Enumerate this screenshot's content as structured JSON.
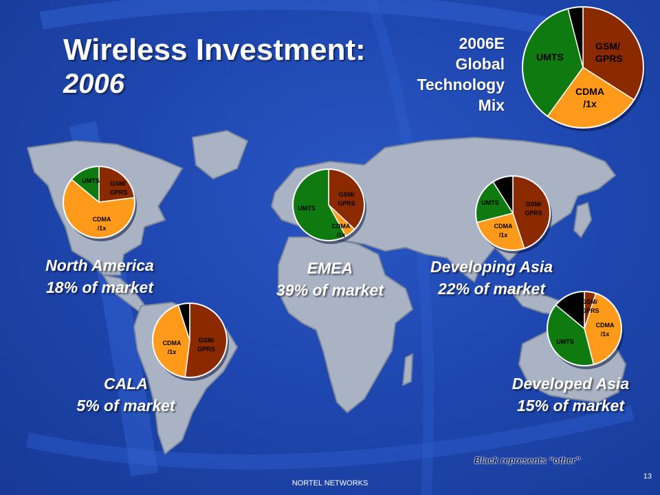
{
  "slide": {
    "title_line1": "Wireless Investment:",
    "title_line2": "2006",
    "global_label": [
      "2006E",
      "Global",
      "Technology",
      "Mix"
    ],
    "footnote": "Black represents “other”",
    "footer": "NORTEL NETWORKS",
    "page_number": "13"
  },
  "colors": {
    "background": "#1f47b0",
    "land": "#a9b3c4",
    "gsm_gprs": "#8b2a00",
    "cdma": "#ff9a1a",
    "umts": "#0e7a10",
    "other": "#000000"
  },
  "regions": {
    "north_america": {
      "name": "North America",
      "share": "18% of market"
    },
    "emea": {
      "name": "EMEA",
      "share": "39% of market"
    },
    "developing_asia": {
      "name": "Developing Asia",
      "share": "22% of market"
    },
    "cala": {
      "name": "CALA",
      "share": "5% of market"
    },
    "developed_asia": {
      "name": "Developed Asia",
      "share": "15% of market"
    }
  },
  "chart_data": [
    {
      "type": "pie",
      "title": "2006E Global Technology Mix",
      "slices": [
        {
          "label": "GSM/ GPRS",
          "value": 34,
          "color": "#8b2a00"
        },
        {
          "label": "CDMA /1x",
          "value": 26,
          "color": "#ff9a1a"
        },
        {
          "label": "UMTS",
          "value": 36,
          "color": "#0e7a10"
        },
        {
          "label": "",
          "value": 4,
          "color": "#000000"
        }
      ]
    },
    {
      "type": "pie",
      "title": "North America",
      "slices": [
        {
          "label": "GSM/ GPRS",
          "value": 23,
          "color": "#8b2a00"
        },
        {
          "label": "CDMA /1x",
          "value": 63,
          "color": "#ff9a1a"
        },
        {
          "label": "UMTS",
          "value": 14,
          "color": "#0e7a10"
        }
      ]
    },
    {
      "type": "pie",
      "title": "EMEA",
      "slices": [
        {
          "label": "GSM/ GPRS",
          "value": 37,
          "color": "#8b2a00"
        },
        {
          "label": "CDMA /1x",
          "value": 5,
          "color": "#ff9a1a"
        },
        {
          "label": "UMTS",
          "value": 58,
          "color": "#0e7a10"
        }
      ]
    },
    {
      "type": "pie",
      "title": "Developing Asia",
      "slices": [
        {
          "label": "GSM/ GPRS",
          "value": 45,
          "color": "#8b2a00"
        },
        {
          "label": "CDMA /1x",
          "value": 26,
          "color": "#ff9a1a"
        },
        {
          "label": "UMTS",
          "value": 20,
          "color": "#0e7a10"
        },
        {
          "label": "",
          "value": 9,
          "color": "#000000"
        }
      ]
    },
    {
      "type": "pie",
      "title": "CALA",
      "slices": [
        {
          "label": "GSM/ GPRS",
          "value": 52,
          "color": "#8b2a00"
        },
        {
          "label": "CDMA /1x",
          "value": 43,
          "color": "#ff9a1a"
        },
        {
          "label": "UMTS",
          "value": 0,
          "color": "#0e7a10"
        },
        {
          "label": "",
          "value": 5,
          "color": "#000000"
        }
      ]
    },
    {
      "type": "pie",
      "title": "Developed Asia",
      "slices": [
        {
          "label": "GSM/ GPRS",
          "value": 5,
          "color": "#8b2a00"
        },
        {
          "label": "CDMA /1x",
          "value": 41,
          "color": "#ff9a1a"
        },
        {
          "label": "UMTS",
          "value": 40,
          "color": "#0e7a10"
        },
        {
          "label": "",
          "value": 14,
          "color": "#000000"
        }
      ]
    }
  ]
}
